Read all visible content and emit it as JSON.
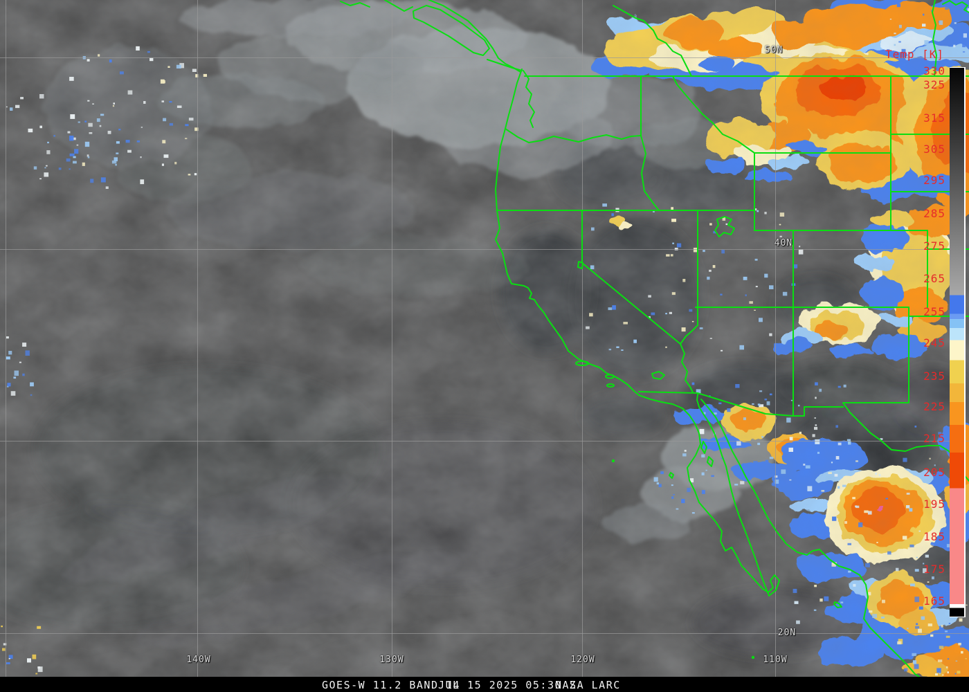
{
  "colorbar": {
    "title": "Temp [K]",
    "unit": "K",
    "ticks": [
      {
        "text": "330"
      },
      {
        "text": "325"
      },
      {
        "text": "315"
      },
      {
        "text": "305"
      },
      {
        "text": "295"
      },
      {
        "text": "285"
      },
      {
        "text": "275"
      },
      {
        "text": "265"
      },
      {
        "text": "255"
      },
      {
        "text": "245"
      },
      {
        "text": "235"
      },
      {
        "text": "225"
      },
      {
        "text": "215"
      },
      {
        "text": "205"
      },
      {
        "text": "195"
      },
      {
        "text": "185"
      },
      {
        "text": "175"
      },
      {
        "text": "165"
      }
    ],
    "scale_colors_top_to_bottom": [
      "#050505",
      "#a8a8a8",
      "#4478ec",
      "#85c2f5",
      "#bce4fa",
      "#fdf5c9",
      "#f0d14f",
      "#f2b63a",
      "#f9951f",
      "#f56e11",
      "#ef4a07",
      "#f98888",
      "#ffffff",
      "#000000"
    ]
  },
  "grid": {
    "lat_labels": [
      {
        "text": "50N"
      },
      {
        "text": "40N"
      },
      {
        "text": "20N"
      }
    ],
    "lon_labels": [
      {
        "text": "140W"
      },
      {
        "text": "130W"
      },
      {
        "text": "120W"
      },
      {
        "text": "110W"
      }
    ]
  },
  "footer": {
    "product": "GOES-W 11.2 BAND 14",
    "datetime": "JUL 15 2025 05:30 Z",
    "source": "NASA LARC"
  },
  "colors": {
    "boundary_green": "#0ade12",
    "label_red": "#e62b2b",
    "grid_label_white": "#dcdcdc",
    "footer_text_white": "#f2f2f2",
    "gridline_gray": "#9a9a9a"
  }
}
